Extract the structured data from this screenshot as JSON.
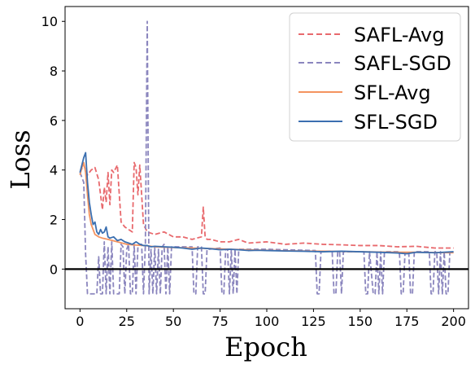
{
  "chart_data": {
    "type": "line",
    "xlabel": "Epoch",
    "ylabel": "Loss",
    "xlim": [
      -8,
      208
    ],
    "ylim": [
      -1.6,
      10.6
    ],
    "xticks": [
      0,
      25,
      50,
      75,
      100,
      125,
      150,
      175,
      200
    ],
    "yticks": [
      0,
      2,
      4,
      6,
      8,
      10
    ],
    "xtick_labels": [
      "0",
      "25",
      "50",
      "75",
      "100",
      "125",
      "150",
      "175",
      "200"
    ],
    "ytick_labels": [
      "0",
      "2",
      "4",
      "6",
      "8",
      "10"
    ],
    "hline": 0,
    "grid": false,
    "legend_position": "top-right",
    "series": [
      {
        "name": "SAFL-Avg",
        "color": "#e8696d",
        "dash": "dashed",
        "x": [
          0,
          2,
          4,
          6,
          8,
          10,
          12,
          13,
          14,
          15,
          16,
          17,
          18,
          20,
          22,
          24,
          26,
          28,
          29,
          30,
          31,
          32,
          34,
          36,
          40,
          45,
          50,
          55,
          60,
          65,
          66,
          67,
          68,
          70,
          75,
          80,
          85,
          90,
          100,
          110,
          120,
          130,
          140,
          150,
          160,
          170,
          180,
          190,
          200
        ],
        "y": [
          3.9,
          4.2,
          3.8,
          4.0,
          4.1,
          3.6,
          2.4,
          3.3,
          2.7,
          3.9,
          2.6,
          4.0,
          3.9,
          4.2,
          1.9,
          1.7,
          1.6,
          1.5,
          4.3,
          4.1,
          3.0,
          4.2,
          1.8,
          1.5,
          1.4,
          1.5,
          1.3,
          1.3,
          1.2,
          1.3,
          2.5,
          1.3,
          1.2,
          1.2,
          1.1,
          1.1,
          1.2,
          1.05,
          1.1,
          1.0,
          1.05,
          1.0,
          0.98,
          0.95,
          0.95,
          0.9,
          0.92,
          0.85,
          0.85
        ]
      },
      {
        "name": "SAFL-SGD",
        "color": "#8b86be",
        "dash": "dashed",
        "x": [
          0,
          2,
          3,
          4,
          5,
          9,
          10,
          11,
          12,
          13,
          14,
          15,
          16,
          17,
          18,
          19,
          20,
          21,
          22,
          23,
          24,
          25,
          26,
          27,
          28,
          29,
          30,
          31,
          32,
          33,
          34,
          35,
          36,
          37,
          38,
          39,
          40,
          41,
          42,
          43,
          44,
          45,
          46,
          47,
          48,
          49,
          50,
          55,
          60,
          61,
          62,
          63,
          64,
          65,
          66,
          67,
          68,
          69,
          75,
          76,
          77,
          78,
          79,
          80,
          81,
          82,
          83,
          84,
          85,
          90,
          100,
          110,
          125,
          126,
          127,
          128,
          129,
          130,
          131,
          135,
          136,
          137,
          138,
          139,
          140,
          141,
          142,
          145,
          150,
          152,
          153,
          154,
          155,
          157,
          158,
          159,
          160,
          161,
          162,
          163,
          164,
          165,
          170,
          171,
          172,
          173,
          174,
          175,
          176,
          177,
          178,
          179,
          180,
          185,
          186,
          187,
          188,
          189,
          190,
          191,
          192,
          193,
          194,
          195,
          196,
          197,
          198,
          200
        ],
        "y": [
          3.9,
          3.5,
          0.6,
          -1.0,
          -1.0,
          -1.0,
          0.5,
          -1.0,
          -1.0,
          1.1,
          -1.0,
          0.9,
          -1.0,
          1.1,
          -1.0,
          -1.0,
          -1.0,
          -1.0,
          1.0,
          0.9,
          -1.0,
          0.8,
          1.0,
          -1.0,
          -1.0,
          1.0,
          -1.0,
          0.9,
          1.0,
          1.0,
          -1.0,
          1.0,
          10.0,
          -1.0,
          0.8,
          -1.0,
          0.9,
          -1.0,
          0.8,
          -1.0,
          0.9,
          1.0,
          -1.0,
          0.9,
          -1.0,
          0.9,
          0.9,
          0.9,
          0.9,
          -1.0,
          -1.0,
          0.9,
          0.9,
          0.9,
          -1.0,
          -1.0,
          0.8,
          0.8,
          0.85,
          -1.0,
          -1.0,
          0.8,
          0.8,
          -1.0,
          0.8,
          -1.0,
          0.8,
          -1.0,
          0.8,
          0.8,
          0.8,
          0.78,
          0.75,
          0.75,
          -1.0,
          -1.0,
          0.7,
          0.7,
          0.72,
          0.72,
          -1.0,
          -1.0,
          0.7,
          0.7,
          -1.0,
          0.7,
          0.7,
          0.7,
          0.7,
          0.7,
          -1.0,
          -1.0,
          0.7,
          -1.0,
          -1.0,
          0.7,
          -1.0,
          0.7,
          -1.0,
          0.7,
          0.7,
          0.7,
          0.7,
          0.7,
          -1.0,
          -1.0,
          0.65,
          0.65,
          0.7,
          -1.0,
          -1.0,
          0.7,
          0.7,
          0.7,
          0.7,
          0.7,
          -1.0,
          -1.0,
          0.7,
          0.7,
          -1.0,
          0.7,
          -1.0,
          0.7,
          -1.0,
          -1.0,
          0.65,
          0.7
        ]
      },
      {
        "name": "SFL-Avg",
        "color": "#f4935f",
        "dash": "solid",
        "x": [
          0,
          1,
          2,
          3,
          4,
          5,
          6,
          7,
          8,
          10,
          12,
          15,
          20,
          25,
          30,
          35,
          40,
          50,
          60,
          70,
          80,
          90,
          100,
          110,
          120,
          130,
          140,
          150,
          160,
          170,
          180,
          190,
          200
        ],
        "y": [
          3.8,
          4.1,
          4.3,
          3.9,
          3.0,
          2.2,
          1.8,
          1.6,
          1.4,
          1.3,
          1.25,
          1.2,
          1.1,
          1.0,
          0.97,
          0.95,
          0.9,
          0.87,
          0.85,
          0.83,
          0.8,
          0.78,
          0.76,
          0.74,
          0.73,
          0.72,
          0.71,
          0.7,
          0.69,
          0.68,
          0.68,
          0.67,
          0.66
        ]
      },
      {
        "name": "SFL-SGD",
        "color": "#3b6fb0",
        "dash": "solid",
        "x": [
          0,
          1,
          2,
          3,
          4,
          5,
          6,
          7,
          8,
          9,
          10,
          11,
          12,
          13,
          14,
          15,
          16,
          18,
          20,
          22,
          24,
          26,
          28,
          30,
          32,
          34,
          36,
          38,
          40,
          45,
          50,
          55,
          60,
          65,
          70,
          75,
          80,
          85,
          90,
          95,
          100,
          110,
          120,
          130,
          140,
          150,
          160,
          170,
          175,
          180,
          190,
          200
        ],
        "y": [
          3.9,
          4.2,
          4.5,
          4.7,
          3.5,
          2.7,
          2.2,
          1.8,
          1.9,
          1.5,
          1.4,
          1.6,
          1.45,
          1.5,
          1.7,
          1.3,
          1.25,
          1.3,
          1.15,
          1.2,
          1.1,
          1.05,
          1.0,
          1.1,
          1.0,
          0.95,
          0.95,
          0.9,
          0.92,
          0.9,
          0.88,
          0.85,
          0.8,
          0.85,
          0.82,
          0.78,
          0.8,
          0.78,
          0.75,
          0.76,
          0.75,
          0.73,
          0.72,
          0.7,
          0.72,
          0.7,
          0.68,
          0.65,
          0.62,
          0.68,
          0.66,
          0.7
        ]
      }
    ]
  }
}
